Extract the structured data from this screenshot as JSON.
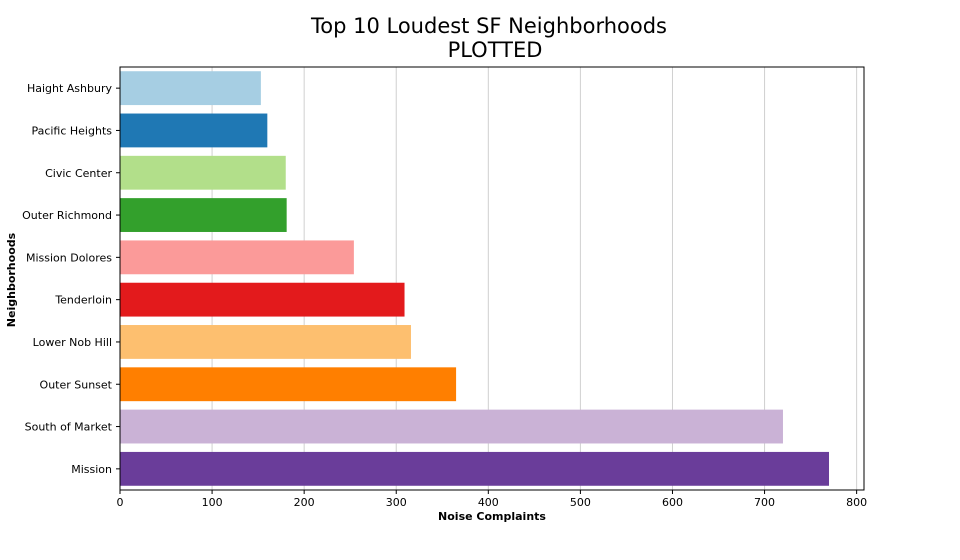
{
  "chart_data": {
    "type": "bar",
    "orientation": "horizontal",
    "title": "Top 10 Loudest SF Neighborhoods",
    "subtitle": "PLOTTED",
    "xlabel": "Noise Complaints",
    "ylabel": "Neighborhoods",
    "xlim": [
      0,
      808
    ],
    "xticks": [
      "0",
      "100",
      "200",
      "300",
      "400",
      "500",
      "600",
      "700",
      "800"
    ],
    "grid": "vertical",
    "categories": [
      "Haight Ashbury",
      "Pacific Heights",
      "Civic Center",
      "Outer Richmond",
      "Mission Dolores",
      "Tenderloin",
      "Lower Nob Hill",
      "Outer Sunset",
      "South of Market",
      "Mission"
    ],
    "values": [
      153,
      160,
      180,
      181,
      254,
      309,
      316,
      365,
      720,
      770
    ],
    "colors": [
      "#a6cee3",
      "#1f78b4",
      "#b2df8a",
      "#33a02c",
      "#fb9a99",
      "#e31a1c",
      "#fdbf6f",
      "#ff7f00",
      "#cab2d6",
      "#6a3d9a"
    ]
  }
}
